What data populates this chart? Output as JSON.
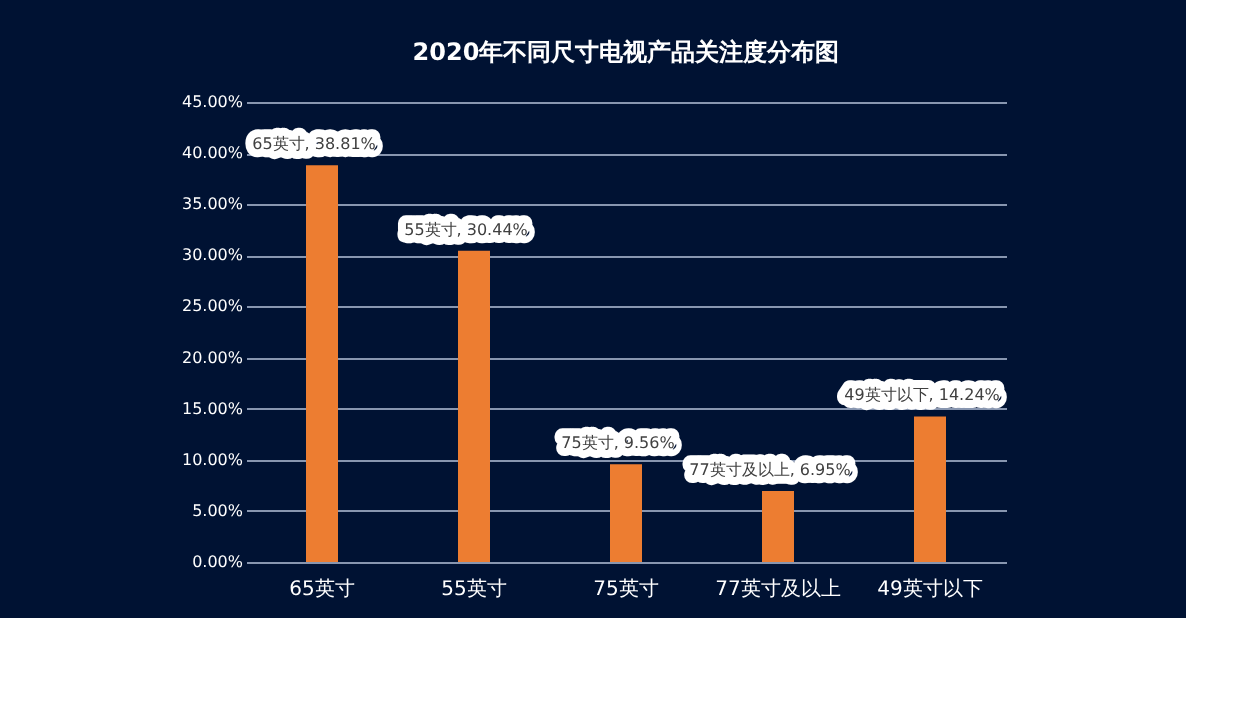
{
  "chart_data": {
    "type": "bar",
    "title": "2020年不同尺寸电视产品关注度分布图",
    "categories": [
      "65英寸",
      "55英寸",
      "75英寸",
      "77英寸及以上",
      "49英寸以下"
    ],
    "values": [
      38.81,
      30.44,
      9.56,
      6.95,
      14.24
    ],
    "value_labels": [
      "65英寸, 38.81%",
      "55英寸, 30.44%",
      "75英寸, 9.56%",
      "77英寸及以上, 6.95%",
      "49英寸以下, 14.24%"
    ],
    "color": "#ed7d31",
    "ylim": [
      0,
      45
    ],
    "yticks": [
      {
        "value": 0,
        "label": "0.00%"
      },
      {
        "value": 5,
        "label": "5.00%"
      },
      {
        "value": 10,
        "label": "10.00%"
      },
      {
        "value": 15,
        "label": "15.00%"
      },
      {
        "value": 20,
        "label": "20.00%"
      },
      {
        "value": 25,
        "label": "25.00%"
      },
      {
        "value": 30,
        "label": "30.00%"
      },
      {
        "value": 35,
        "label": "35.00%"
      },
      {
        "value": 40,
        "label": "40.00%"
      },
      {
        "value": 45,
        "label": "45.00%"
      }
    ],
    "grid": "y",
    "legend": false
  }
}
